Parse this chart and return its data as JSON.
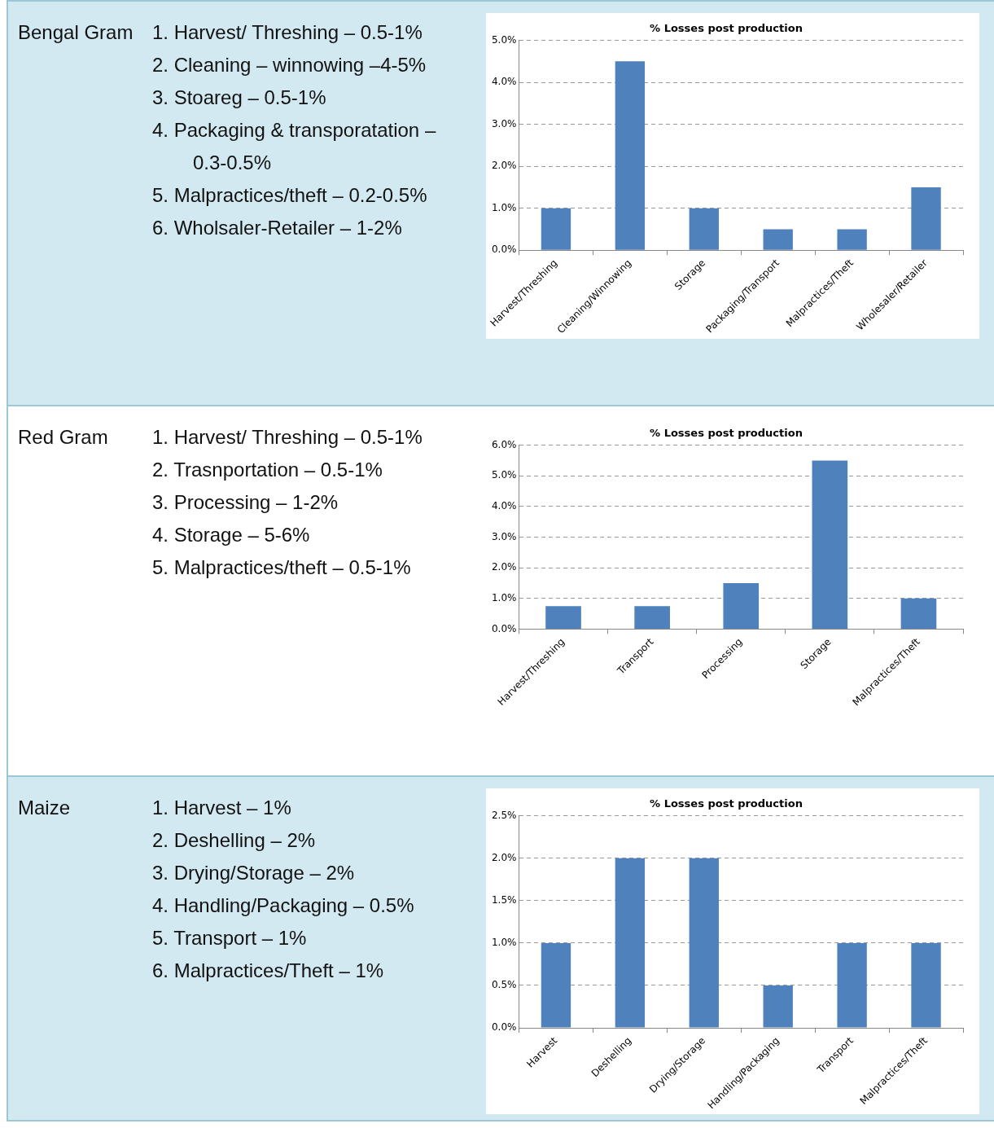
{
  "chart_data": [
    {
      "type": "other",
      "title": "Bengal Gram",
      "annotations": [
        "1. Harvest/ Threshing – 0.5-1%",
        "2. Cleaning – winnowing –4-5%",
        "3. Stoareg – 0.5-1%",
        "4. Packaging & transporatation –0.3-0.5%",
        "5. Malpractices/theft – 0.2-0.5%",
        "6. Wholsaler-Retailer – 1-2%"
      ]
    },
    {
      "type": "bar",
      "title": "% Losses post production",
      "categories": [
        "Harvest/Threshing",
        "Cleaning/Winnowing",
        "Storage",
        "Packaging/Transport",
        "Malpractices/Theft",
        "Wholesaler/Retailer"
      ],
      "values": [
        1.0,
        4.5,
        1.0,
        0.5,
        0.5,
        1.5
      ],
      "color": "#4f81bd",
      "ylim": [
        0,
        5
      ],
      "yticks": [
        {
          "value": 0,
          "label": "0.0%"
        },
        {
          "value": 1,
          "label": "1.0%"
        },
        {
          "value": 2,
          "label": "2.0%"
        },
        {
          "value": 3,
          "label": "3.0%"
        },
        {
          "value": 4,
          "label": "4.0%"
        },
        {
          "value": 5,
          "label": "5.0%"
        }
      ],
      "grid": "y"
    },
    {
      "type": "other",
      "title": "Red Gram",
      "annotations": [
        "1. Harvest/ Threshing – 0.5-1%",
        "2. Trasnportation – 0.5-1%",
        "3. Processing – 1-2%",
        "4. Storage – 5-6%",
        "5. Malpractices/theft – 0.5-1%"
      ]
    },
    {
      "type": "bar",
      "title": "% Losses post production",
      "categories": [
        "Harvest/Threshing",
        "Transport",
        "Processing",
        "Storage",
        "Malpractices/Theft"
      ],
      "values": [
        0.75,
        0.75,
        1.5,
        5.5,
        1.0
      ],
      "color": "#4f81bd",
      "ylim": [
        0,
        6
      ],
      "yticks": [
        {
          "value": 0,
          "label": "0.0%"
        },
        {
          "value": 1,
          "label": "1.0%"
        },
        {
          "value": 2,
          "label": "2.0%"
        },
        {
          "value": 3,
          "label": "3.0%"
        },
        {
          "value": 4,
          "label": "4.0%"
        },
        {
          "value": 5,
          "label": "5.0%"
        },
        {
          "value": 6,
          "label": "6.0%"
        }
      ],
      "grid": "y"
    },
    {
      "type": "other",
      "title": "Maize",
      "annotations": [
        "1. Harvest – 1%",
        "2. Deshelling – 2%",
        "3. Drying/Storage – 2%",
        "4. Handling/Packaging – 0.5%",
        "5. Transport – 1%",
        "6. Malpractices/Theft – 1%"
      ]
    },
    {
      "type": "bar",
      "title": "% Losses post production",
      "categories": [
        "Harvest",
        "Deshelling",
        "Drying/Storage",
        "Handling/Packaging",
        "Transport",
        "Malpractices/Theft"
      ],
      "values": [
        1,
        2,
        2,
        0.5,
        1,
        1
      ],
      "color": "#4f81bd",
      "ylim": [
        0,
        2.5
      ],
      "yticks": [
        {
          "value": 0,
          "label": "0.0%"
        },
        {
          "value": 0.5,
          "label": "0.5%"
        },
        {
          "value": 1,
          "label": "1.0%"
        },
        {
          "value": 1.5,
          "label": "1.5%"
        },
        {
          "value": 2,
          "label": "2.0%"
        },
        {
          "value": 2.5,
          "label": "2.5%"
        }
      ],
      "grid": "y"
    }
  ]
}
